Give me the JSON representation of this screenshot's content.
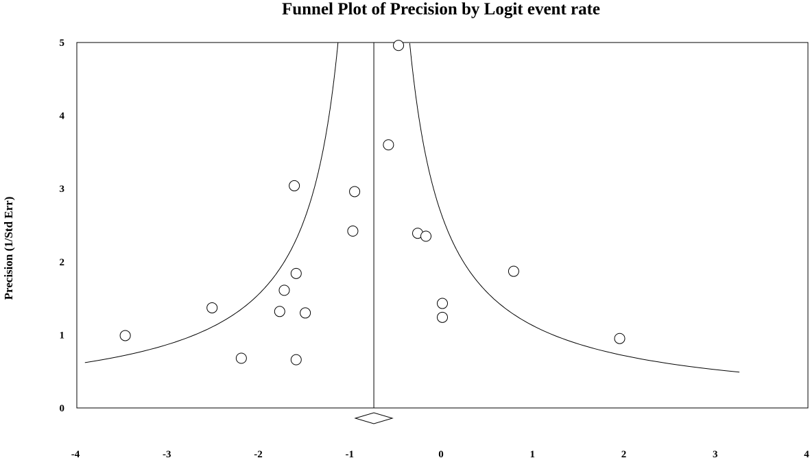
{
  "chart_data": {
    "type": "scatter",
    "title": "Funnel Plot of Precision by Logit event rate",
    "xlabel": "",
    "ylabel": "Precision (1/Std Err)",
    "xlim": [
      -4,
      4
    ],
    "ylim": [
      0,
      5
    ],
    "x_ticks": [
      "-4",
      "-3",
      "-2",
      "-1",
      "0",
      "1",
      "2",
      "3",
      "4"
    ],
    "y_ticks": [
      "0",
      "1",
      "2",
      "3",
      "4",
      "5"
    ],
    "pooled_estimate": -0.75,
    "grid": false,
    "points": [
      {
        "x": -3.47,
        "y": 0.99
      },
      {
        "x": -2.52,
        "y": 1.37
      },
      {
        "x": -2.2,
        "y": 0.68
      },
      {
        "x": -1.78,
        "y": 1.32
      },
      {
        "x": -1.73,
        "y": 1.61
      },
      {
        "x": -1.62,
        "y": 3.04
      },
      {
        "x": -1.6,
        "y": 1.84
      },
      {
        "x": -1.6,
        "y": 0.66
      },
      {
        "x": -1.5,
        "y": 1.3
      },
      {
        "x": -0.96,
        "y": 2.96
      },
      {
        "x": -0.98,
        "y": 2.42
      },
      {
        "x": -0.59,
        "y": 3.6
      },
      {
        "x": -0.48,
        "y": 4.96
      },
      {
        "x": -0.27,
        "y": 2.39
      },
      {
        "x": -0.18,
        "y": 2.35
      },
      {
        "x": 0.0,
        "y": 1.43
      },
      {
        "x": 0.0,
        "y": 1.24
      },
      {
        "x": 0.78,
        "y": 1.87
      },
      {
        "x": 1.94,
        "y": 0.95
      }
    ]
  }
}
